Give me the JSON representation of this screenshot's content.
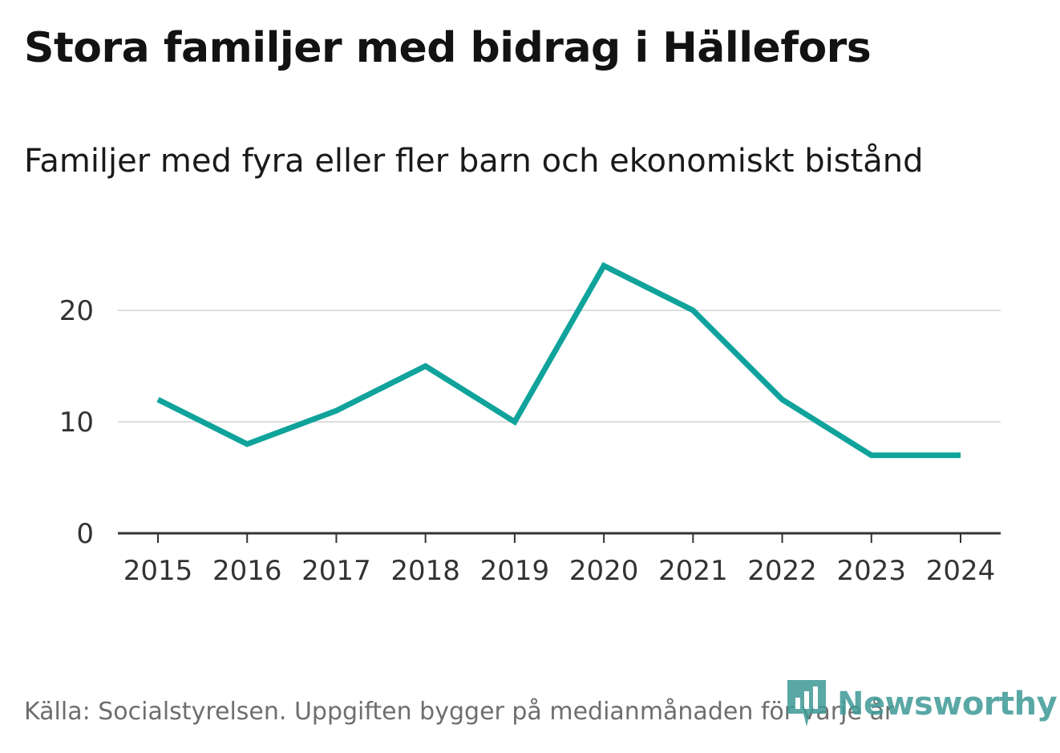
{
  "header": {
    "title": "Stora familjer med bidrag i Hällefors",
    "subtitle": "Familjer med fyra eller fler barn och ekonomiskt bistånd"
  },
  "footer": {
    "source": "Källa: Socialstyrelsen. Uppgiften bygger på medianmånaden för varje år"
  },
  "brand": {
    "name": "Newsworthy",
    "icon": "newsworthy-logo-icon",
    "color": "#3e9a96"
  },
  "colors": {
    "line": "#0fa39b",
    "grid": "#dddddd",
    "axis": "#333333"
  },
  "chart_data": {
    "type": "line",
    "title": "Stora familjer med bidrag i Hällefors",
    "subtitle": "Familjer med fyra eller fler barn och ekonomiskt bistånd",
    "xlabel": "",
    "ylabel": "",
    "categories": [
      "2015",
      "2016",
      "2017",
      "2018",
      "2019",
      "2020",
      "2021",
      "2022",
      "2023",
      "2024"
    ],
    "series": [
      {
        "name": "Familjer med fyra eller fler barn och ekonomiskt bistånd",
        "values": [
          12,
          8,
          11,
          15,
          10,
          24,
          20,
          12,
          7,
          7
        ]
      }
    ],
    "yticks": [
      0,
      10,
      20
    ],
    "ylim": [
      0,
      25
    ],
    "grid": true,
    "legend": "none"
  }
}
